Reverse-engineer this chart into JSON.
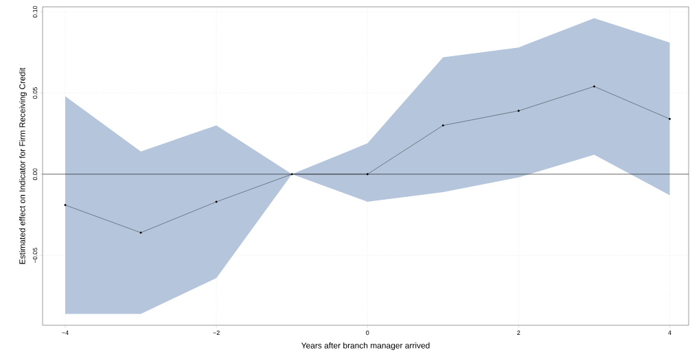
{
  "chart_data": {
    "type": "line",
    "xlabel": "Years after branch manager arrived",
    "ylabel": "Estimated effect on Indicator for Firm Receiving Credit",
    "x": [
      -4,
      -3,
      -2,
      -1,
      0,
      1,
      2,
      3,
      4
    ],
    "series": [
      {
        "color": "#000000",
        "values": [
          -0.019,
          -0.036,
          -0.017,
          0.0,
          0.0,
          0.03,
          0.039,
          0.054,
          0.034
        ],
        "lower": [
          -0.086,
          -0.086,
          -0.064,
          0.0,
          -0.017,
          -0.011,
          -0.002,
          0.012,
          -0.013
        ],
        "upper": [
          0.048,
          0.014,
          0.03,
          0.0,
          0.019,
          0.072,
          0.078,
          0.096,
          0.081
        ]
      }
    ],
    "xlim": [
      -4.3,
      4.25
    ],
    "ylim": [
      -0.093,
      0.103
    ],
    "xticks": [
      {
        "value": -4,
        "label": "−4"
      },
      {
        "value": -2,
        "label": "−2"
      },
      0,
      2,
      4
    ],
    "yticks": [
      {
        "value": -0.05,
        "label": "−0.05"
      },
      {
        "value": 0,
        "label": "0.00"
      },
      0.05,
      {
        "value": 0.1,
        "label": "0.10"
      }
    ],
    "ref_lines": [
      {
        "axis": "y",
        "value": 0,
        "color": "#000000"
      }
    ],
    "grid": true,
    "marker": "circle",
    "line_style": "solid"
  }
}
